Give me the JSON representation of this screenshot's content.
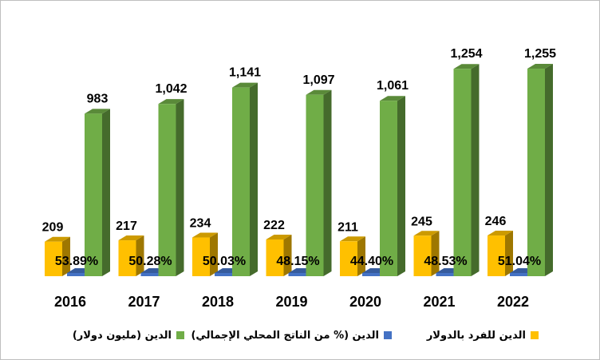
{
  "chart_data": {
    "type": "bar",
    "style": "3d-clustered-column",
    "categories": [
      "2016",
      "2017",
      "2018",
      "2019",
      "2020",
      "2021",
      "2022"
    ],
    "series": [
      {
        "name": "الدين للفرد بالدولار",
        "color": "#FFC000",
        "values": [
          209,
          217,
          234,
          222,
          211,
          245,
          246
        ],
        "labels": [
          "209",
          "217",
          "234",
          "222",
          "211",
          "245",
          "246"
        ]
      },
      {
        "name": "الدين (% من الناتج المحلي الإجمالي)",
        "color": "#4472C4",
        "values": [
          53.89,
          50.28,
          50.03,
          48.15,
          44.4,
          48.53,
          51.04
        ],
        "labels": [
          "53.89%",
          "50.28%",
          "50.03%",
          "48.15%",
          "44.40%",
          "48.53%",
          "51.04%"
        ]
      },
      {
        "name": "الدين (مليون دولار)",
        "color": "#70AD47",
        "values": [
          983,
          1042,
          1141,
          1097,
          1061,
          1254,
          1255
        ],
        "labels": [
          "983",
          "1,042",
          "1,141",
          "1,097",
          "1,061",
          "1,254",
          "1,255"
        ]
      }
    ],
    "ylim": [
      0,
      1400
    ],
    "grid": false,
    "legend_position": "bottom"
  }
}
